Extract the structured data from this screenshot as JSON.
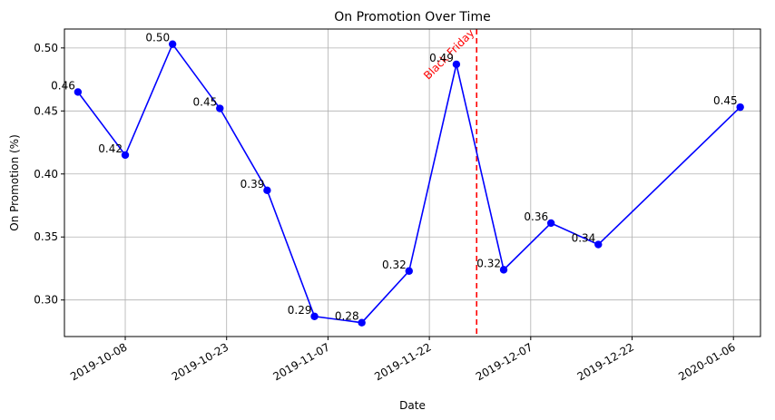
{
  "chart_data": {
    "type": "line",
    "title": "On Promotion Over Time",
    "xlabel": "Date",
    "ylabel": "On Promotion (%)",
    "x_ticks": [
      "2019-10-08",
      "2019-10-23",
      "2019-11-07",
      "2019-11-22",
      "2019-12-07",
      "2019-12-22",
      "2020-01-06"
    ],
    "y_ticks": [
      "0.30",
      "0.35",
      "0.40",
      "0.45",
      "0.50"
    ],
    "ylim": [
      0.271,
      0.515
    ],
    "xlim": [
      "2019-09-29",
      "2020-01-10"
    ],
    "grid": true,
    "series": [
      {
        "color": "#0000ff",
        "marker": "circle",
        "x": [
          "2019-10-01",
          "2019-10-08",
          "2019-10-15",
          "2019-10-22",
          "2019-10-29",
          "2019-11-05",
          "2019-11-12",
          "2019-11-19",
          "2019-11-26",
          "2019-12-03",
          "2019-12-10",
          "2019-12-17",
          "2020-01-07"
        ],
        "values": [
          0.465,
          0.415,
          0.503,
          0.452,
          0.387,
          0.287,
          0.282,
          0.323,
          0.487,
          0.324,
          0.361,
          0.344,
          0.453
        ],
        "labels": [
          "0.46",
          "0.42",
          "0.50",
          "0.45",
          "0.39",
          "0.29",
          "0.28",
          "0.32",
          "0.49",
          "0.32",
          "0.36",
          "0.34",
          "0.45"
        ]
      }
    ],
    "annotation": {
      "text": "Black Friday",
      "x": "2019-11-29",
      "color": "#ff0000",
      "linestyle": "dashed"
    }
  }
}
